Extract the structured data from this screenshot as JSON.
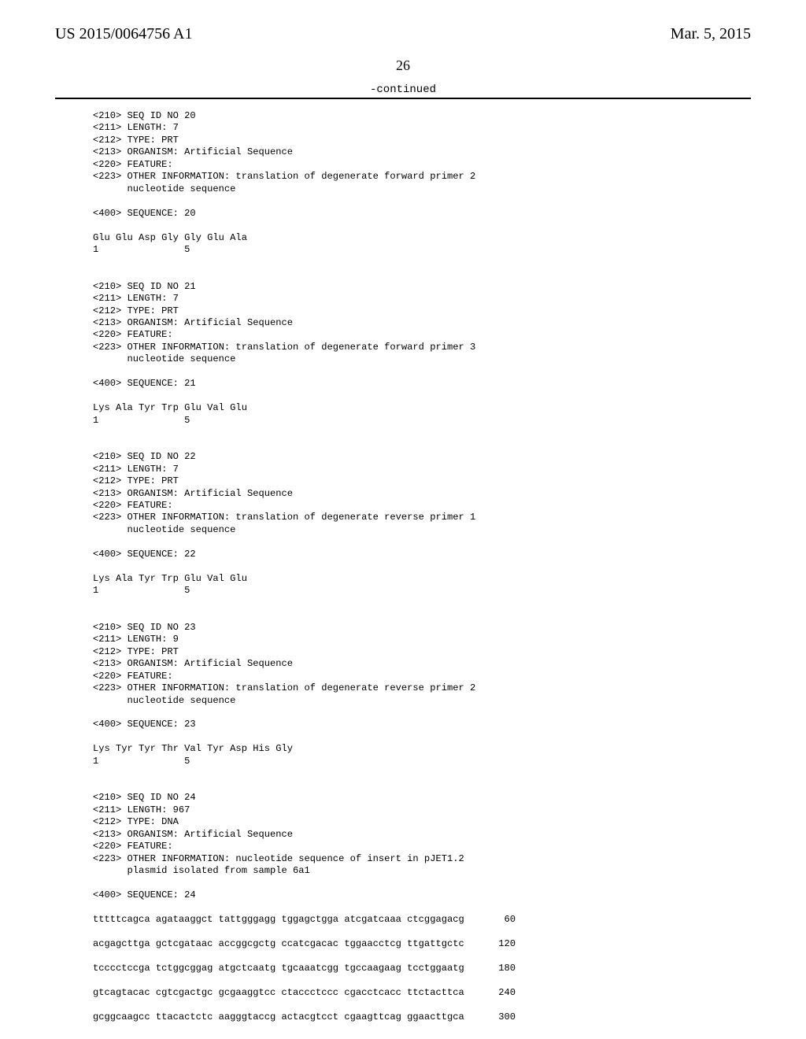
{
  "header": {
    "left": "US 2015/0064756 A1",
    "right": "Mar. 5, 2015"
  },
  "page_number": "26",
  "continued": "-continued",
  "seq": {
    "s20": {
      "l1": "<210> SEQ ID NO 20",
      "l2": "<211> LENGTH: 7",
      "l3": "<212> TYPE: PRT",
      "l4": "<213> ORGANISM: Artificial Sequence",
      "l5": "<220> FEATURE:",
      "l6": "<223> OTHER INFORMATION: translation of degenerate forward primer 2",
      "l7": "      nucleotide sequence",
      "l8": "<400> SEQUENCE: 20",
      "pep": "Glu Glu Asp Gly Gly Glu Ala",
      "num": "1               5"
    },
    "s21": {
      "l1": "<210> SEQ ID NO 21",
      "l2": "<211> LENGTH: 7",
      "l3": "<212> TYPE: PRT",
      "l4": "<213> ORGANISM: Artificial Sequence",
      "l5": "<220> FEATURE:",
      "l6": "<223> OTHER INFORMATION: translation of degenerate forward primer 3",
      "l7": "      nucleotide sequence",
      "l8": "<400> SEQUENCE: 21",
      "pep": "Lys Ala Tyr Trp Glu Val Glu",
      "num": "1               5"
    },
    "s22": {
      "l1": "<210> SEQ ID NO 22",
      "l2": "<211> LENGTH: 7",
      "l3": "<212> TYPE: PRT",
      "l4": "<213> ORGANISM: Artificial Sequence",
      "l5": "<220> FEATURE:",
      "l6": "<223> OTHER INFORMATION: translation of degenerate reverse primer 1",
      "l7": "      nucleotide sequence",
      "l8": "<400> SEQUENCE: 22",
      "pep": "Lys Ala Tyr Trp Glu Val Glu",
      "num": "1               5"
    },
    "s23": {
      "l1": "<210> SEQ ID NO 23",
      "l2": "<211> LENGTH: 9",
      "l3": "<212> TYPE: PRT",
      "l4": "<213> ORGANISM: Artificial Sequence",
      "l5": "<220> FEATURE:",
      "l6": "<223> OTHER INFORMATION: translation of degenerate reverse primer 2",
      "l7": "      nucleotide sequence",
      "l8": "<400> SEQUENCE: 23",
      "pep": "Lys Tyr Tyr Thr Val Tyr Asp His Gly",
      "num": "1               5"
    },
    "s24": {
      "l1": "<210> SEQ ID NO 24",
      "l2": "<211> LENGTH: 967",
      "l3": "<212> TYPE: DNA",
      "l4": "<213> ORGANISM: Artificial Sequence",
      "l5": "<220> FEATURE:",
      "l6": "<223> OTHER INFORMATION: nucleotide sequence of insert in pJET1.2",
      "l7": "      plasmid isolated from sample 6a1",
      "l8": "<400> SEQUENCE: 24",
      "r1": "tttttcagca agataaggct tattgggagg tggagctgga atcgatcaaa ctcggagacg       60",
      "r2": "acgagcttga gctcgataac accggcgctg ccatcgacac tggaacctcg ttgattgctc      120",
      "r3": "tcccctccga tctggcggag atgctcaatg tgcaaatcgg tgccaagaag tcctggaatg      180",
      "r4": "gtcagtacac cgtcgactgc gcgaaggtcc ctaccctccc cgacctcacc ttctacttca      240",
      "r5": "gcggcaagcc ttacactctc aagggtaccg actacgtcct cgaagttcag ggaacttgca      300"
    }
  }
}
